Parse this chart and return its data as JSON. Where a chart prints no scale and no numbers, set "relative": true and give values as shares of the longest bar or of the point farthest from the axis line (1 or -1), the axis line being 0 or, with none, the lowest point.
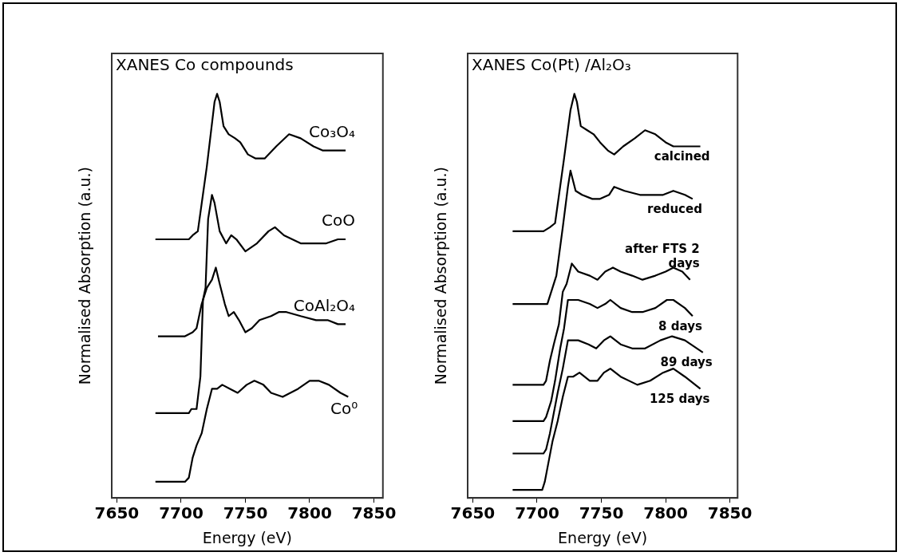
{
  "chart_data": [
    {
      "type": "line",
      "title": "XANES Co compounds",
      "xlabel": "Energy (eV)",
      "ylabel": "Normalised Absorption (a.u.)",
      "xlim": [
        7646,
        7857
      ],
      "xticks": [
        7650,
        7700,
        7750,
        7800,
        7850
      ],
      "relative": true,
      "legend": false,
      "grid": false,
      "marker": "none",
      "line_style": "solid",
      "series": [
        {
          "name": "Co₃O₄",
          "color": "#000000",
          "x": [
            7680,
            7706,
            7709,
            7713,
            7720,
            7726,
            7728,
            7730,
            7733,
            7737,
            7742,
            7746,
            7752,
            7758,
            7765,
            7774,
            7784,
            7793,
            7803,
            7810,
            7819,
            7828
          ],
          "values": [
            0.64,
            0.64,
            0.65,
            0.66,
            0.82,
            0.98,
            1,
            0.98,
            0.92,
            0.9,
            0.89,
            0.88,
            0.85,
            0.84,
            0.84,
            0.87,
            0.9,
            0.89,
            0.87,
            0.86,
            0.86,
            0.86
          ]
        },
        {
          "name": "CoO",
          "color": "#000000",
          "x": [
            7680,
            7706,
            7708,
            7712,
            7715,
            7717,
            7719,
            7721,
            7724,
            7726,
            7730,
            7735,
            7739,
            7743,
            7750,
            7759,
            7768,
            7773,
            7780,
            7793,
            7803,
            7813,
            7822,
            7828
          ],
          "values": [
            0.21,
            0.21,
            0.22,
            0.22,
            0.3,
            0.49,
            0.52,
            0.69,
            0.75,
            0.73,
            0.66,
            0.63,
            0.65,
            0.64,
            0.61,
            0.63,
            0.66,
            0.67,
            0.65,
            0.63,
            0.63,
            0.63,
            0.64,
            0.64
          ]
        },
        {
          "name": "CoAl₂O₄",
          "color": "#000000",
          "x": [
            7682,
            7703,
            7709,
            7712,
            7716,
            7720,
            7724,
            7727,
            7730,
            7734,
            7737,
            7741,
            7745,
            7750,
            7755,
            7761,
            7770,
            7776,
            7782,
            7793,
            7805,
            7814,
            7822,
            7828
          ],
          "values": [
            0.4,
            0.4,
            0.41,
            0.42,
            0.48,
            0.52,
            0.54,
            0.57,
            0.53,
            0.48,
            0.45,
            0.46,
            0.44,
            0.41,
            0.42,
            0.44,
            0.45,
            0.46,
            0.46,
            0.45,
            0.44,
            0.44,
            0.43,
            0.43
          ]
        },
        {
          "name": "Co⁰",
          "color": "#000000",
          "x": [
            7680,
            7703,
            7706,
            7709,
            7712,
            7716,
            7720,
            7724,
            7728,
            7732,
            7738,
            7744,
            7751,
            7757,
            7764,
            7770,
            7779,
            7791,
            7800,
            7807,
            7815,
            7824,
            7830
          ],
          "values": [
            0.04,
            0.04,
            0.05,
            0.1,
            0.13,
            0.16,
            0.22,
            0.27,
            0.27,
            0.28,
            0.27,
            0.26,
            0.28,
            0.29,
            0.28,
            0.26,
            0.25,
            0.27,
            0.29,
            0.29,
            0.28,
            0.26,
            0.25
          ]
        }
      ]
    },
    {
      "type": "line",
      "title": "XANES Co(Pt) /Al₂O₃",
      "xlabel": "Energy (eV)",
      "ylabel": "Normalised Absorption (a.u.)",
      "xlim": [
        7646,
        7856
      ],
      "xticks": [
        7650,
        7700,
        7750,
        7800,
        7850
      ],
      "relative": true,
      "legend": false,
      "grid": false,
      "marker": "none",
      "line_style": "solid",
      "series": [
        {
          "name": "calcined",
          "color": "#000000",
          "x": [
            7681,
            7705,
            7710,
            7714,
            7721,
            7726,
            7729,
            7731,
            7734,
            7739,
            7744,
            7749,
            7755,
            7760,
            7767,
            7776,
            7784,
            7792,
            7800,
            7806,
            7817,
            7827
          ],
          "values": [
            0.66,
            0.66,
            0.67,
            0.68,
            0.84,
            0.96,
            1,
            0.98,
            0.92,
            0.91,
            0.9,
            0.88,
            0.86,
            0.85,
            0.87,
            0.89,
            0.91,
            0.9,
            0.88,
            0.87,
            0.87,
            0.87
          ]
        },
        {
          "name": "reduced",
          "color": "#000000",
          "x": [
            7681,
            7705,
            7708,
            7712,
            7715,
            7720,
            7724,
            7726,
            7730,
            7735,
            7743,
            7749,
            7756,
            7760,
            7768,
            7780,
            7790,
            7798,
            7806,
            7815,
            7821
          ],
          "values": [
            0.48,
            0.48,
            0.48,
            0.52,
            0.55,
            0.67,
            0.77,
            0.81,
            0.76,
            0.75,
            0.74,
            0.74,
            0.75,
            0.77,
            0.76,
            0.75,
            0.75,
            0.75,
            0.76,
            0.75,
            0.74
          ]
        },
        {
          "name": "after FTS 2 days",
          "color": "#000000",
          "x": [
            7681,
            7705,
            7707,
            7710,
            7713,
            7717,
            7720,
            7723,
            7727,
            7732,
            7741,
            7747,
            7753,
            7759,
            7765,
            7774,
            7782,
            7792,
            7800,
            7806,
            7813,
            7819
          ],
          "values": [
            0.28,
            0.28,
            0.29,
            0.34,
            0.38,
            0.43,
            0.51,
            0.53,
            0.58,
            0.56,
            0.55,
            0.54,
            0.56,
            0.57,
            0.56,
            0.55,
            0.54,
            0.55,
            0.56,
            0.57,
            0.56,
            0.54
          ]
        },
        {
          "name": "8 days",
          "color": "#000000",
          "x": [
            7681,
            7705,
            7707,
            7711,
            7714,
            7718,
            7721,
            7724,
            7727,
            7732,
            7741,
            7747,
            7753,
            7757,
            7765,
            7774,
            7782,
            7792,
            7801,
            7806,
            7815,
            7821
          ],
          "values": [
            0.19,
            0.19,
            0.2,
            0.24,
            0.29,
            0.37,
            0.42,
            0.49,
            0.49,
            0.49,
            0.48,
            0.47,
            0.48,
            0.49,
            0.47,
            0.46,
            0.46,
            0.47,
            0.49,
            0.49,
            0.47,
            0.45
          ]
        },
        {
          "name": "89 days",
          "color": "#000000",
          "x": [
            7681,
            7705,
            7707,
            7710,
            7713,
            7716,
            7720,
            7724,
            7727,
            7732,
            7740,
            7746,
            7752,
            7757,
            7765,
            7774,
            7784,
            7796,
            7805,
            7815,
            7829
          ],
          "values": [
            0.11,
            0.11,
            0.12,
            0.16,
            0.21,
            0.26,
            0.32,
            0.39,
            0.39,
            0.39,
            0.38,
            0.37,
            0.39,
            0.4,
            0.38,
            0.37,
            0.37,
            0.39,
            0.4,
            0.39,
            0.36
          ]
        },
        {
          "name": "125 days",
          "color": "#000000",
          "x": [
            7681,
            7704,
            7706,
            7709,
            7712,
            7716,
            7720,
            7724,
            7728,
            7733,
            7741,
            7747,
            7752,
            7757,
            7765,
            7778,
            7788,
            7798,
            7806,
            7815,
            7827
          ],
          "values": [
            0.02,
            0.02,
            0.04,
            0.09,
            0.14,
            0.19,
            0.25,
            0.3,
            0.3,
            0.31,
            0.29,
            0.29,
            0.31,
            0.32,
            0.3,
            0.28,
            0.29,
            0.31,
            0.32,
            0.3,
            0.27
          ]
        }
      ]
    }
  ]
}
